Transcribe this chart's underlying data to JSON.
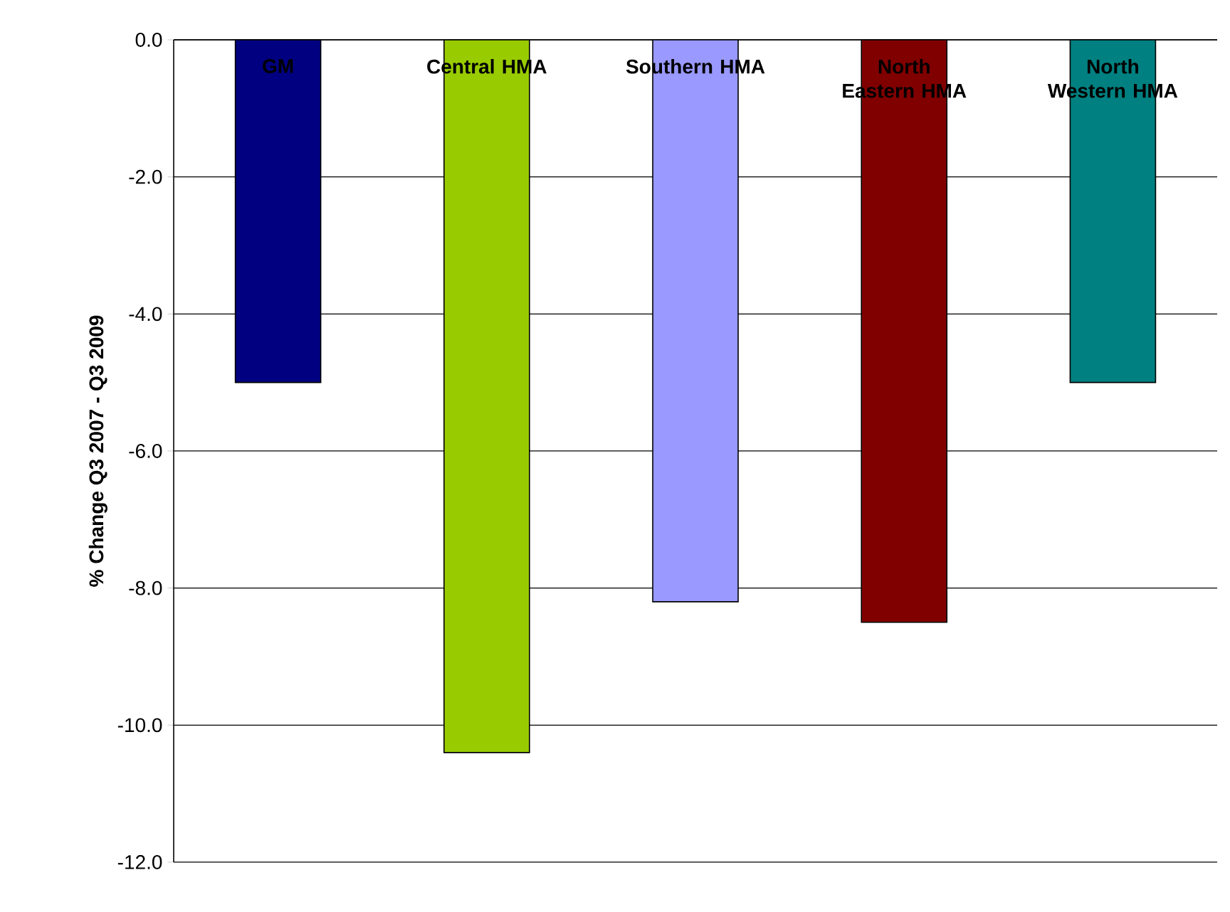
{
  "chart_data": {
    "type": "bar",
    "ylabel": "% Change Q3 2007 - Q3 2009",
    "categories": [
      "GM",
      "Central HMA",
      "Southern HMA",
      "North Eastern HMA",
      "North Western HMA"
    ],
    "values": [
      -5.0,
      -10.4,
      -8.2,
      -8.5,
      -5.0
    ],
    "colors": [
      "#000080",
      "#99cc00",
      "#9999ff",
      "#800000",
      "#008080"
    ],
    "ylim": [
      -12,
      0
    ],
    "yticks": [
      {
        "value": 0,
        "label": "0.0"
      },
      {
        "value": -2,
        "label": "-2.0"
      },
      {
        "value": -4,
        "label": "-4.0"
      },
      {
        "value": -6,
        "label": "-6.0"
      },
      {
        "value": -8,
        "label": "-8.0"
      },
      {
        "value": -10,
        "label": "-10.0"
      },
      {
        "value": -12,
        "label": "-12.0"
      }
    ],
    "grid": "y"
  }
}
